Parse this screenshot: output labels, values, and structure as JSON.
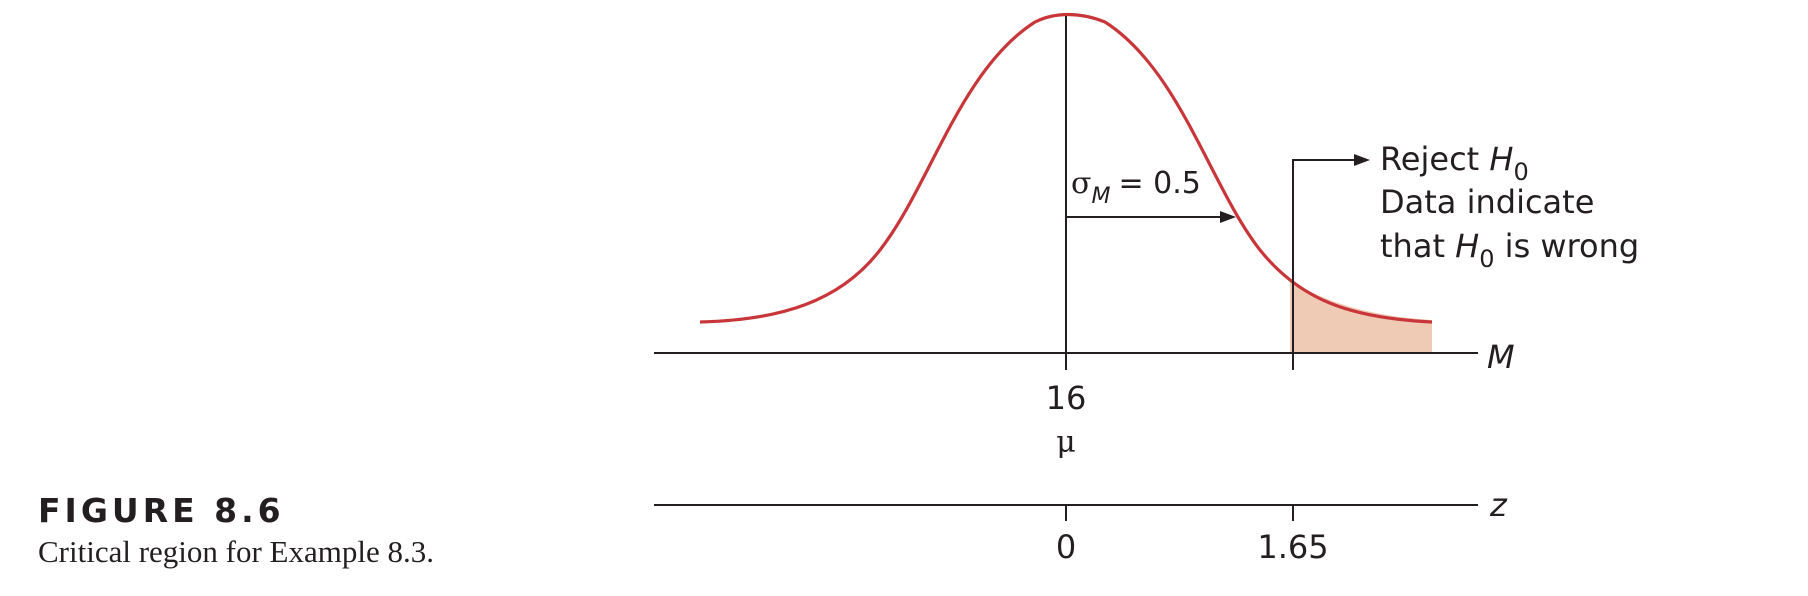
{
  "figure": {
    "label": "FIGURE 8.6",
    "caption": "Critical region for Example 8.3."
  },
  "diagram": {
    "sigma_symbol": "σ",
    "sigma_subscript": "M",
    "sigma_value": "= 0.5",
    "axis_M": {
      "label": "M",
      "mean_tick": "16",
      "mean_symbol": "μ"
    },
    "axis_z": {
      "label": "z",
      "tick_zero": "0",
      "tick_critical": "1.65"
    },
    "reject_annotation": {
      "line1_prefix": "Reject ",
      "hypothesis_letter": "H",
      "hypothesis_subscript": "0",
      "line2": "Data indicate",
      "line3_prefix": "that ",
      "line3_suffix": " is wrong"
    },
    "colors": {
      "curve": "#c8363a",
      "critical_region_fill": "#efcbb5",
      "axis": "#231f20"
    }
  }
}
